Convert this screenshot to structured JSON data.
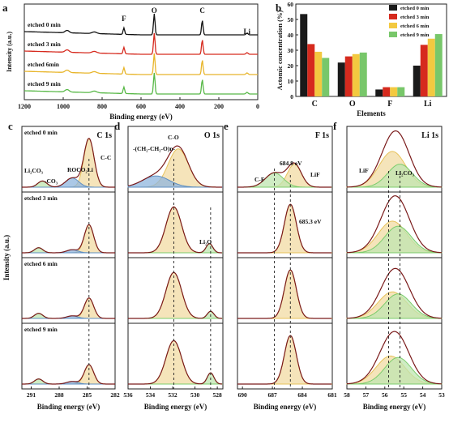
{
  "chart_data": [
    {
      "panel": "a",
      "type": "line",
      "xlabel": "Binding energy (eV)",
      "ylabel": "Intensity (a.u.)",
      "xlim": [
        1200,
        0
      ],
      "xticks": [
        "1200",
        "1000",
        "800",
        "600",
        "400",
        "200",
        "0"
      ],
      "peak_labels": [
        "F",
        "O",
        "C",
        "Li"
      ],
      "peaks_eV": [
        688,
        532,
        285,
        55
      ],
      "series": [
        {
          "name": "etched 0 min",
          "color": "#111111"
        },
        {
          "name": "etched 3 min",
          "color": "#d62a1e"
        },
        {
          "name": "etched 6min",
          "color": "#e8b52a"
        },
        {
          "name": "etched 9 min",
          "color": "#58b847"
        }
      ]
    },
    {
      "panel": "b",
      "type": "bar",
      "categories": [
        "C",
        "O",
        "F",
        "Li"
      ],
      "xlabel": "Elements",
      "ylabel": "Actomic concentration (%)",
      "ylim": [
        0,
        60
      ],
      "yticks": [
        "0",
        "10",
        "20",
        "30",
        "40",
        "50",
        "60"
      ],
      "series": [
        {
          "name": "etched 0 min",
          "color": "#1a1a1a",
          "values": [
            53.5,
            22,
            4.5,
            20
          ]
        },
        {
          "name": "etched 3 min",
          "color": "#d62a1e",
          "values": [
            34,
            26,
            6,
            33.5
          ]
        },
        {
          "name": "etched 6 min",
          "color": "#f3c940",
          "values": [
            29,
            27.5,
            6,
            37.5
          ]
        },
        {
          "name": "etched 9 min",
          "color": "#78c76a",
          "values": [
            25,
            28.5,
            6,
            40.5
          ]
        }
      ]
    },
    {
      "panel": "c",
      "type": "line",
      "title": "C 1s",
      "xlabel": "Binding energy (eV)",
      "xlim": [
        292,
        282
      ],
      "xticks": [
        "291",
        "288",
        "285",
        "282"
      ],
      "dashed_at": 284.8,
      "annotations": [
        "Li₂CO₃",
        "ROCO₂Li",
        "C-C",
        "-CO₃"
      ],
      "rows": [
        "etched 0 min",
        "etched 3 min",
        "etched 6 min",
        "etched 9 min"
      ]
    },
    {
      "panel": "d",
      "type": "line",
      "title": "O 1s",
      "xlabel": "Binding energy (eV)",
      "xlim": [
        536,
        527.5
      ],
      "xticks": [
        "536",
        "534",
        "532",
        "530",
        "528"
      ],
      "annotations": [
        "-(CH₂-CH₂-O)n-",
        "C-O",
        "Li₂O"
      ]
    },
    {
      "panel": "e",
      "type": "line",
      "title": "F 1s",
      "xlabel": "Binding energy (eV)",
      "xlim": [
        690.5,
        681
      ],
      "xticks": [
        "690",
        "687",
        "684",
        "681"
      ],
      "annotations": [
        "684.8 eV",
        "C-F",
        "LiF",
        "685.3 eV"
      ]
    },
    {
      "panel": "f",
      "type": "line",
      "title": "Li 1s",
      "xlabel": "Binding energy (eV)",
      "xlim": [
        58,
        53
      ],
      "xticks": [
        "58",
        "57",
        "56",
        "55",
        "54",
        "53"
      ],
      "annotations": [
        "LiF",
        "Li₂CO₃"
      ]
    }
  ],
  "labels": {
    "panel_a": "a",
    "panel_b": "b",
    "panel_c": "c",
    "panel_d": "d",
    "panel_e": "e",
    "panel_f": "f",
    "intensity": "Intensity (a.u.)"
  }
}
